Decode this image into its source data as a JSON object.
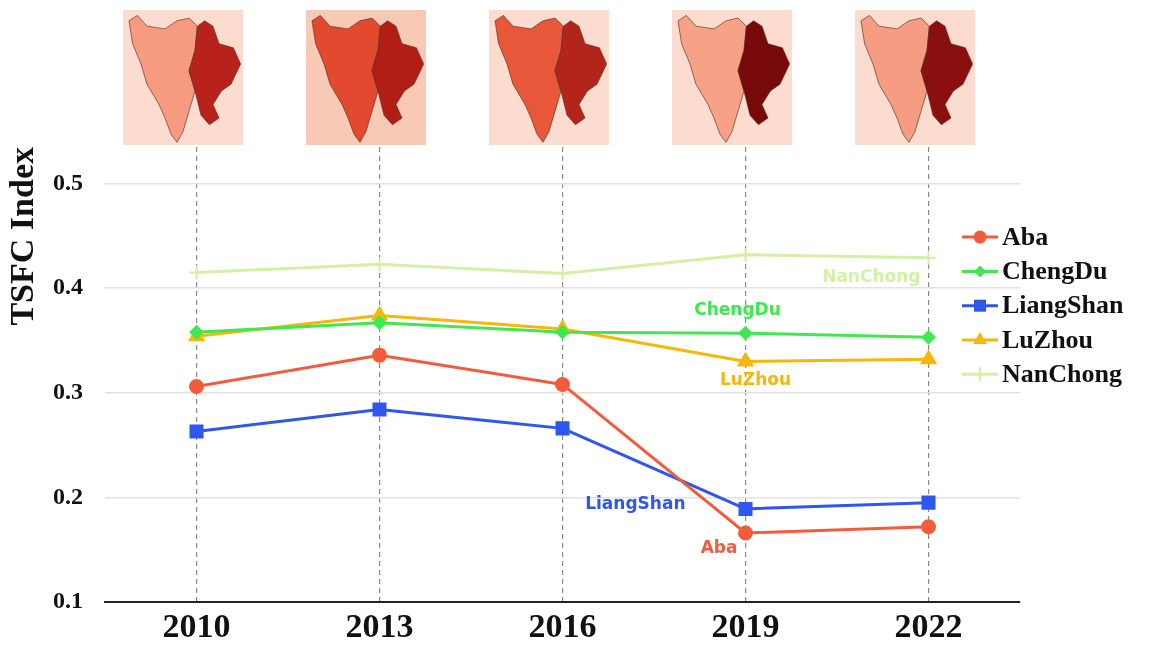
{
  "chart_data": {
    "type": "line",
    "ylabel": "TSFC Index",
    "categories": [
      "2010",
      "2013",
      "2016",
      "2019",
      "2022"
    ],
    "series": [
      {
        "name": "Aba",
        "color": "#f25c3a",
        "marker": "circle",
        "values": [
          0.306,
          0.336,
          0.308,
          0.166,
          0.172
        ]
      },
      {
        "name": "ChengDu",
        "color": "#3fe84e",
        "marker": "diamond",
        "values": [
          0.358,
          0.367,
          0.358,
          0.357,
          0.353
        ]
      },
      {
        "name": "LiangShan",
        "color": "#2f56ee",
        "marker": "square",
        "values": [
          0.263,
          0.284,
          0.266,
          0.189,
          0.195
        ]
      },
      {
        "name": "LuZhou",
        "color": "#f5b70a",
        "marker": "triangle",
        "values": [
          0.354,
          0.374,
          0.361,
          0.33,
          0.332
        ]
      },
      {
        "name": "NanChong",
        "color": "#d3f0a6",
        "marker": "cross",
        "values": [
          0.415,
          0.423,
          0.414,
          0.432,
          0.429
        ]
      }
    ],
    "ylim": [
      0.1,
      0.535
    ],
    "yticks": [
      0.1,
      0.2,
      0.3,
      0.4,
      0.5
    ],
    "grid": true,
    "legend": "right",
    "line_style": "solid",
    "annotations": [
      "Aba",
      "ChengDu",
      "LiangShan",
      "LuZhou",
      "NanChong"
    ]
  }
}
